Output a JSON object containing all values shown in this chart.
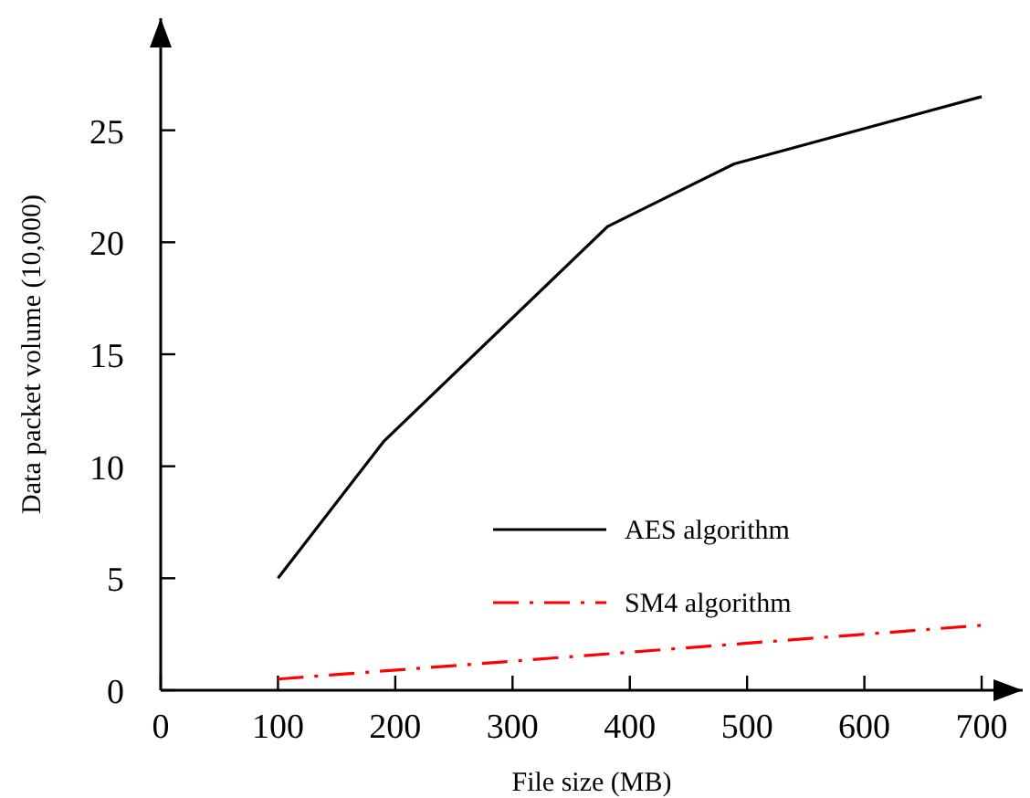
{
  "chart_data": {
    "type": "line",
    "xlabel": "File size (MB)",
    "ylabel": "Data packet volume (10,000)",
    "xlim": [
      0,
      735
    ],
    "xticks": [
      0,
      100,
      200,
      300,
      400,
      500,
      600,
      700
    ],
    "ylim": [
      0,
      30
    ],
    "yticks": [
      0,
      5,
      10,
      15,
      20,
      25
    ],
    "legend": "bottom right",
    "grid": false,
    "marker": "none",
    "series": [
      {
        "name": "AES algorithm",
        "color": "#000000",
        "line_style": "solid",
        "x": [
          100,
          190,
          381,
          489,
          700
        ],
        "values": [
          5,
          11.1,
          20.7,
          23.5,
          26.5
        ]
      },
      {
        "name": "SM4 algorithm",
        "color": "#ff0000",
        "line_style": "dashdot",
        "x": [
          100,
          700
        ],
        "values": [
          0.5,
          2.9
        ]
      }
    ]
  }
}
